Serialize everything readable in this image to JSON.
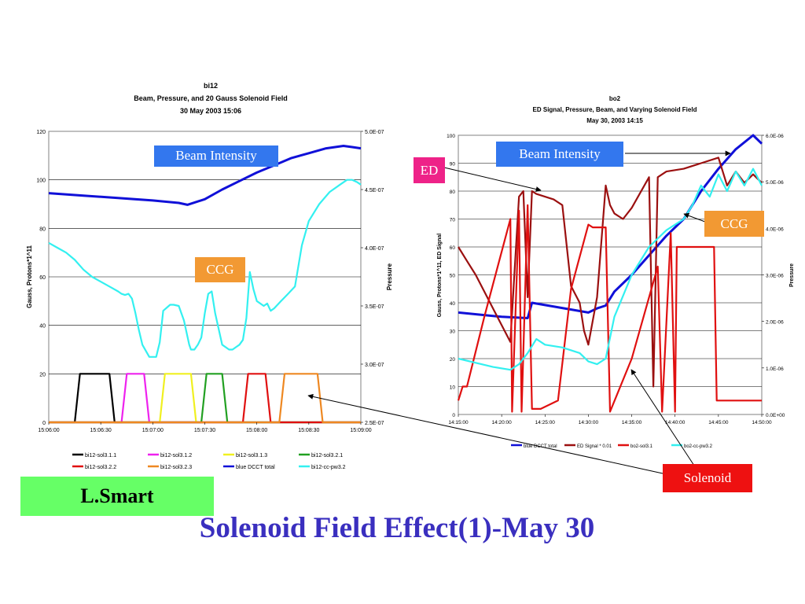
{
  "slide_title": "Solenoid Field Effect(1)-May 30",
  "author": "L.Smart",
  "colors": {
    "blue": "#1010d8",
    "cyan": "#33f0f0",
    "darkred": "#9b1010",
    "red": "#e01010",
    "black": "#000000",
    "magenta": "#ee22ee",
    "yellow": "#f0f020",
    "green": "#22a022",
    "orange": "#ee8822",
    "callout_blue": "#3377ee",
    "callout_orange": "#f29933",
    "callout_pink": "#ee2288",
    "callout_red": "#ee1111",
    "title": "#3a2fbf",
    "author_bg": "#66ff66"
  },
  "callouts": {
    "left_beam": "Beam Intensity",
    "left_ccg": "CCG",
    "right_beam": "Beam Intensity",
    "right_ed": "ED",
    "right_ccg": "CCG",
    "solenoid": "Solenoid"
  },
  "chart_data": [
    {
      "type": "line",
      "title": "bi12",
      "subtitle1": "Beam, Pressure, and 20 Gauss Solenoid Field",
      "subtitle2": "30 May 2003 15:06",
      "ylabel": "Gauss, Protons*1^11",
      "y2label": "Pressure",
      "ylim": [
        0,
        120
      ],
      "y2lim": [
        2.5e-07,
        5e-07
      ],
      "yticks": [
        "0",
        "20",
        "40",
        "60",
        "80",
        "100",
        "120"
      ],
      "y2ticks": [
        "2.5E-07",
        "3.0E-07",
        "3.5E-07",
        "4.0E-07",
        "4.5E-07",
        "5.0E-07"
      ],
      "xlim_seconds": [
        0,
        180
      ],
      "xticks": [
        "15:06:00",
        "15:06:30",
        "15:07:00",
        "15:07:30",
        "15:08:00",
        "15:08:30",
        "15:09:00"
      ],
      "legend": [
        "bi12-sol3.1.1",
        "bi12-sol3.1.2",
        "bi12-sol3.1.3",
        "bi12-sol3.2.1",
        "bi12-sol3.2.2",
        "bi12-sol3.2.3",
        "blue DCCT total",
        "bi12-cc-pw3.2"
      ],
      "series": [
        {
          "name": "blue DCCT total",
          "color": "blue",
          "axis": "left",
          "x": [
            0,
            20,
            40,
            60,
            75,
            80,
            90,
            100,
            110,
            120,
            130,
            140,
            150,
            160,
            170,
            175,
            180
          ],
          "y": [
            94.5,
            93.5,
            92.5,
            91.5,
            90.5,
            89.7,
            92,
            96,
            99.5,
            103,
            106,
            109,
            111,
            113,
            114,
            113.5,
            113
          ]
        },
        {
          "name": "bi12-cc-pw3.2",
          "color": "cyan",
          "axis": "left",
          "x": [
            0,
            5,
            10,
            15,
            20,
            25,
            30,
            35,
            40,
            42,
            44,
            46,
            48,
            50,
            52,
            54,
            58,
            62,
            64,
            66,
            70,
            72,
            75,
            78,
            81,
            82,
            84,
            86,
            88,
            90,
            92,
            94,
            96,
            100,
            104,
            106,
            108,
            110,
            112,
            114,
            116,
            118,
            120,
            124,
            126,
            128,
            130,
            134,
            138,
            142,
            146,
            150,
            156,
            162,
            168,
            172,
            175,
            178,
            180
          ],
          "y": [
            74,
            72,
            70,
            67,
            63,
            60,
            58,
            56,
            54,
            53,
            52.5,
            53,
            51,
            45,
            38,
            32,
            27,
            27,
            33,
            46,
            48.5,
            48.5,
            48,
            42,
            32,
            30,
            30,
            32,
            35,
            45,
            53,
            54,
            45,
            32,
            30,
            30,
            31,
            32,
            34,
            43,
            62,
            55,
            50,
            48,
            49,
            46,
            47,
            50,
            53,
            56,
            73,
            83,
            90,
            95,
            98,
            100,
            100,
            99,
            98
          ]
        },
        {
          "name": "bi12-sol3.1.1",
          "color": "black",
          "axis": "left",
          "x": [
            0,
            15,
            18,
            35,
            38,
            180
          ],
          "y": [
            0,
            0,
            20,
            20,
            0,
            0
          ]
        },
        {
          "name": "bi12-sol3.1.2",
          "color": "magenta",
          "axis": "left",
          "x": [
            0,
            42,
            45,
            55,
            58,
            180
          ],
          "y": [
            0,
            0,
            20,
            20,
            0,
            0
          ]
        },
        {
          "name": "bi12-sol3.1.3",
          "color": "yellow",
          "axis": "left",
          "x": [
            0,
            64,
            67,
            82,
            85,
            180
          ],
          "y": [
            0,
            0,
            20,
            20,
            0,
            0
          ]
        },
        {
          "name": "bi12-sol3.2.1",
          "color": "green",
          "axis": "left",
          "x": [
            0,
            88,
            91,
            100,
            103,
            180
          ],
          "y": [
            0,
            0,
            20,
            20,
            0,
            0
          ]
        },
        {
          "name": "bi12-sol3.2.2",
          "color": "red",
          "axis": "left",
          "x": [
            0,
            112,
            115,
            125,
            128,
            180
          ],
          "y": [
            0,
            0,
            20,
            20,
            0,
            0
          ]
        },
        {
          "name": "bi12-sol3.2.3",
          "color": "orange",
          "axis": "left",
          "x": [
            0,
            133,
            136,
            155,
            158,
            180
          ],
          "y": [
            0,
            0,
            20,
            20,
            0,
            0
          ]
        }
      ]
    },
    {
      "type": "line",
      "title": "bo2",
      "subtitle1": "ED Signal, Pressure, Beam, and Varying Solenoid Field",
      "subtitle2": "May 30, 2003 14:15",
      "ylabel": "Gauss, Protons*1^11, ED Signal",
      "y2label": "Pressure",
      "ylim": [
        0,
        100
      ],
      "y2lim": [
        0,
        6e-06
      ],
      "yticks": [
        "0",
        "10",
        "20",
        "30",
        "40",
        "50",
        "60",
        "70",
        "80",
        "90",
        "100"
      ],
      "y2ticks": [
        "0.0E+00",
        "1.0E-06",
        "2.0E-06",
        "3.0E-06",
        "4.0E-06",
        "5.0E-06",
        "6.0E-06"
      ],
      "xlim_minutes": [
        0,
        35
      ],
      "xticks": [
        "14:15:00",
        "14:20:00",
        "14:25:00",
        "14:30:00",
        "14:35:00",
        "14:40:00",
        "14:45:00",
        "14:50:00"
      ],
      "legend": [
        "blue DCCT total",
        "ED Signal * 0.01",
        "bo2-sol3.1",
        "bo2-cc-pw3.2"
      ],
      "series": [
        {
          "name": "blue DCCT total",
          "color": "blue",
          "axis": "left",
          "x": [
            0,
            5,
            8,
            8.5,
            15,
            16,
            17,
            18,
            20,
            22,
            24,
            26,
            28,
            30,
            32,
            34,
            35
          ],
          "y": [
            36.5,
            35,
            34.5,
            40,
            36.5,
            38,
            39,
            44,
            50,
            57,
            64,
            70,
            80,
            88,
            95,
            100,
            97
          ]
        },
        {
          "name": "ED Signal * 0.01",
          "color": "darkred",
          "axis": "left",
          "x": [
            0,
            1,
            2,
            3,
            4,
            5,
            6,
            7,
            7.5,
            8,
            8.5,
            9,
            10,
            11,
            12,
            13,
            14,
            14.5,
            15,
            16,
            17,
            17.5,
            18,
            19,
            20,
            22,
            22.5,
            23,
            24,
            26,
            28,
            30,
            31,
            32,
            33,
            34,
            35
          ],
          "y": [
            60,
            55,
            50,
            44,
            38,
            32,
            26,
            78,
            80,
            42,
            80,
            79,
            78,
            77,
            75,
            46,
            40,
            30,
            25,
            42,
            82,
            75,
            72,
            70,
            74,
            85,
            10,
            85,
            87,
            88,
            90,
            92,
            82,
            87,
            83,
            86,
            83
          ]
        },
        {
          "name": "bo2-sol3.1",
          "color": "red",
          "axis": "left",
          "x": [
            0,
            0.5,
            1,
            3,
            6,
            6.2,
            7,
            7.3,
            8,
            8.5,
            9.5,
            11.5,
            13,
            15,
            15.5,
            17,
            17.5,
            20,
            23,
            23.5,
            24.5,
            25,
            25.2,
            26,
            26.5,
            29,
            29.5,
            29.8,
            30,
            33,
            35
          ],
          "y": [
            5,
            10,
            10,
            35,
            70,
            1,
            73,
            1,
            75,
            2,
            2,
            5,
            45,
            68,
            67,
            67,
            1,
            20,
            53,
            1,
            65,
            1,
            60,
            60,
            60,
            60,
            60,
            5,
            5,
            5,
            5
          ]
        },
        {
          "name": "bo2-cc-pw3.2",
          "color": "cyan",
          "axis": "left",
          "x": [
            0,
            2,
            4,
            6,
            7,
            8,
            9,
            10,
            12,
            14,
            15,
            16,
            17,
            18,
            20,
            22,
            24,
            26,
            27,
            28,
            29,
            30,
            31,
            32,
            33,
            34,
            35
          ],
          "y": [
            20,
            18.5,
            17,
            16,
            18,
            22,
            27,
            25,
            24,
            22,
            19,
            18,
            20,
            35,
            50,
            60,
            66,
            70,
            75,
            82,
            78,
            86,
            80,
            87,
            82,
            88,
            82
          ]
        }
      ]
    }
  ]
}
